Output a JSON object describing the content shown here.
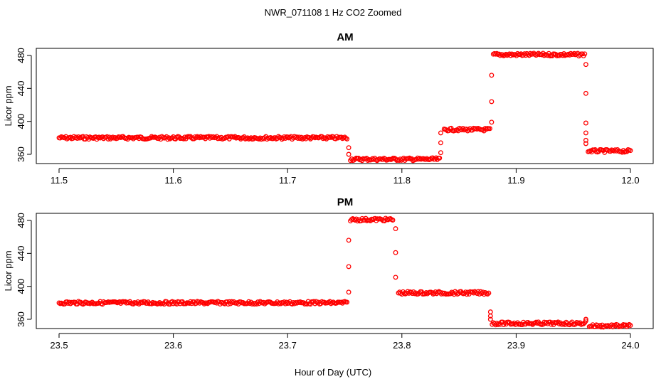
{
  "figure": {
    "title": "NWR_071108  1 Hz CO2 Zoomed",
    "xlabel": "Hour of Day (UTC)"
  },
  "colors": {
    "points": "#ff0000",
    "axis": "#000000",
    "background": "#ffffff"
  },
  "chart_data": [
    {
      "type": "scatter",
      "title": "AM",
      "xlabel": "",
      "ylabel": "Licor ppm",
      "xlim": [
        11.5,
        12.0
      ],
      "ylim": [
        350,
        488
      ],
      "xticks": [
        "11.5",
        "11.6",
        "11.7",
        "11.8",
        "11.9",
        "12.0"
      ],
      "yticks": [
        "360",
        "400",
        "440",
        "480"
      ],
      "grid": false,
      "marker": "open-circle",
      "series": [
        {
          "segments": [
            {
              "x": [
                11.5,
                11.752
              ],
              "y": 380
            },
            {
              "x": [
                11.755,
                11.833
              ],
              "y": 354
            },
            {
              "x": [
                11.837,
                11.877
              ],
              "y": 390
            },
            {
              "x": [
                11.88,
                11.96
              ],
              "y": 481
            },
            {
              "x": [
                11.963,
                12.0
              ],
              "y": 364
            }
          ],
          "transitions": [
            {
              "x": 11.7535,
              "y": [
                368,
                360
              ]
            },
            {
              "x": 11.834,
              "y": [
                362,
                374,
                386
              ]
            },
            {
              "x": 11.8785,
              "y": [
                399,
                424,
                456
              ]
            },
            {
              "x": 11.961,
              "y": [
                469,
                434,
                398,
                386,
                377,
                373
              ]
            }
          ]
        }
      ]
    },
    {
      "type": "scatter",
      "title": "PM",
      "xlabel": "",
      "ylabel": "Licor ppm",
      "xlim": [
        23.5,
        24.0
      ],
      "ylim": [
        350,
        488
      ],
      "xticks": [
        "23.5",
        "23.6",
        "23.7",
        "23.8",
        "23.9",
        "24.0"
      ],
      "yticks": [
        "360",
        "400",
        "440",
        "480"
      ],
      "grid": false,
      "marker": "open-circle",
      "series": [
        {
          "segments": [
            {
              "x": [
                23.5,
                23.752
              ],
              "y": 380
            },
            {
              "x": [
                23.755,
                23.792
              ],
              "y": 481
            },
            {
              "x": [
                23.797,
                23.876
              ],
              "y": 392
            },
            {
              "x": [
                23.879,
                23.96
              ],
              "y": 355
            },
            {
              "x": [
                23.964,
                24.0
              ],
              "y": 352
            }
          ],
          "transitions": [
            {
              "x": 23.7535,
              "y": [
                393,
                424,
                456
              ]
            },
            {
              "x": 23.7945,
              "y": [
                470,
                441,
                411
              ]
            },
            {
              "x": 23.8775,
              "y": [
                369,
                364,
                360
              ]
            },
            {
              "x": 23.961,
              "y": [
                358,
                360
              ]
            }
          ]
        }
      ]
    }
  ]
}
